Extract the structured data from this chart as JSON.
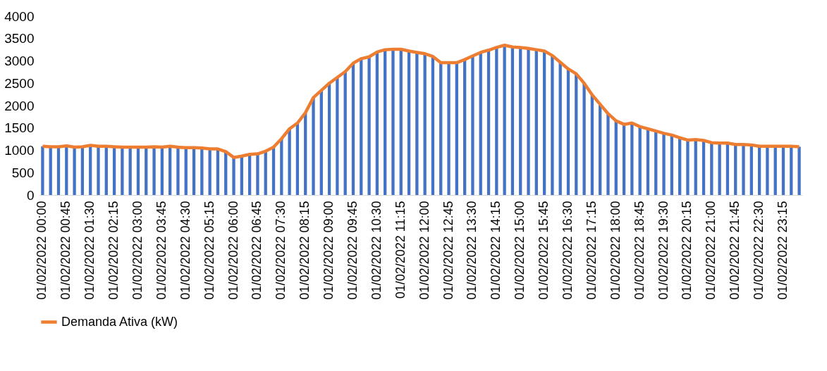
{
  "chart_data": {
    "type": "bar",
    "categories": [
      "01/02/2022 00:00",
      null,
      null,
      "01/02/2022 00:45",
      null,
      null,
      "01/02/2022 01:30",
      null,
      null,
      "01/02/2022 02:15",
      null,
      null,
      "01/02/2022 03:00",
      null,
      null,
      "01/02/2022 03:45",
      null,
      null,
      "01/02/2022 04:30",
      null,
      null,
      "01/02/2022 05:15",
      null,
      null,
      "01/02/2022 06:00",
      null,
      null,
      "01/02/2022 06:45",
      null,
      null,
      "01/02/2022 07:30",
      null,
      null,
      "01/02/2022 08:15",
      null,
      null,
      "01/02/2022 09:00",
      null,
      null,
      "01/02/2022 09:45",
      null,
      null,
      "01/02/2022 10:30",
      null,
      null,
      "01/02/2022 11:15",
      null,
      null,
      "01/02/2022 12:00",
      null,
      null,
      "01/02/2022 12:45",
      null,
      null,
      "01/02/2022 13:30",
      null,
      null,
      "01/02/2022 14:15",
      null,
      null,
      "01/02/2022 15:00",
      null,
      null,
      "01/02/2022 15:45",
      null,
      null,
      "01/02/2022 16:30",
      null,
      null,
      "01/02/2022 17:15",
      null,
      null,
      "01/02/2022 18:00",
      null,
      null,
      "01/02/2022 18:45",
      null,
      null,
      "01/02/2022 19:30",
      null,
      null,
      "01/02/2022 20:15",
      null,
      null,
      "01/02/2022 21:00",
      null,
      null,
      "01/02/2022 21:45",
      null,
      null,
      "01/02/2022 22:30",
      null,
      null,
      "01/02/2022 23:15",
      null,
      null
    ],
    "series": [
      {
        "color": "#4472c4",
        "values": [
          1090,
          1080,
          1080,
          1100,
          1070,
          1080,
          1110,
          1090,
          1090,
          1080,
          1070,
          1070,
          1070,
          1070,
          1080,
          1070,
          1090,
          1070,
          1060,
          1060,
          1050,
          1030,
          1030,
          970,
          840,
          870,
          910,
          920,
          980,
          1070,
          1260,
          1480,
          1610,
          1840,
          2180,
          2340,
          2500,
          2630,
          2760,
          2950,
          3050,
          3090,
          3200,
          3250,
          3260,
          3260,
          3220,
          3190,
          3160,
          3100,
          2960,
          2960,
          2960,
          3030,
          3110,
          3190,
          3240,
          3300,
          3350,
          3310,
          3300,
          3280,
          3250,
          3220,
          3120,
          2970,
          2820,
          2710,
          2500,
          2240,
          2030,
          1820,
          1660,
          1580,
          1610,
          1530,
          1480,
          1430,
          1380,
          1340,
          1280,
          1230,
          1240,
          1220,
          1170,
          1160,
          1160,
          1130,
          1130,
          1120,
          1090,
          1090,
          1090,
          1090,
          1090,
          1080
        ]
      },
      {
        "type": "line",
        "name": "Demanda Ativa (kW)",
        "color": "#ed7d31",
        "values": [
          1090,
          1080,
          1080,
          1100,
          1070,
          1080,
          1110,
          1090,
          1090,
          1080,
          1070,
          1070,
          1070,
          1070,
          1080,
          1070,
          1090,
          1070,
          1060,
          1060,
          1050,
          1030,
          1030,
          970,
          840,
          870,
          910,
          920,
          980,
          1070,
          1260,
          1480,
          1610,
          1840,
          2180,
          2340,
          2500,
          2630,
          2760,
          2950,
          3050,
          3090,
          3200,
          3250,
          3260,
          3260,
          3220,
          3190,
          3160,
          3100,
          2960,
          2960,
          2960,
          3030,
          3110,
          3190,
          3240,
          3300,
          3350,
          3310,
          3300,
          3280,
          3250,
          3220,
          3120,
          2970,
          2820,
          2710,
          2500,
          2240,
          2030,
          1820,
          1660,
          1580,
          1610,
          1530,
          1480,
          1430,
          1380,
          1340,
          1280,
          1230,
          1240,
          1220,
          1170,
          1160,
          1160,
          1130,
          1130,
          1120,
          1090,
          1090,
          1090,
          1090,
          1090,
          1080
        ]
      }
    ],
    "ylim": [
      0,
      4000
    ],
    "yticks": [
      0,
      500,
      1000,
      1500,
      2000,
      2500,
      3000,
      3500,
      4000
    ],
    "grid": false,
    "legend": "bottom",
    "marker": "none",
    "line_style": "solid"
  }
}
